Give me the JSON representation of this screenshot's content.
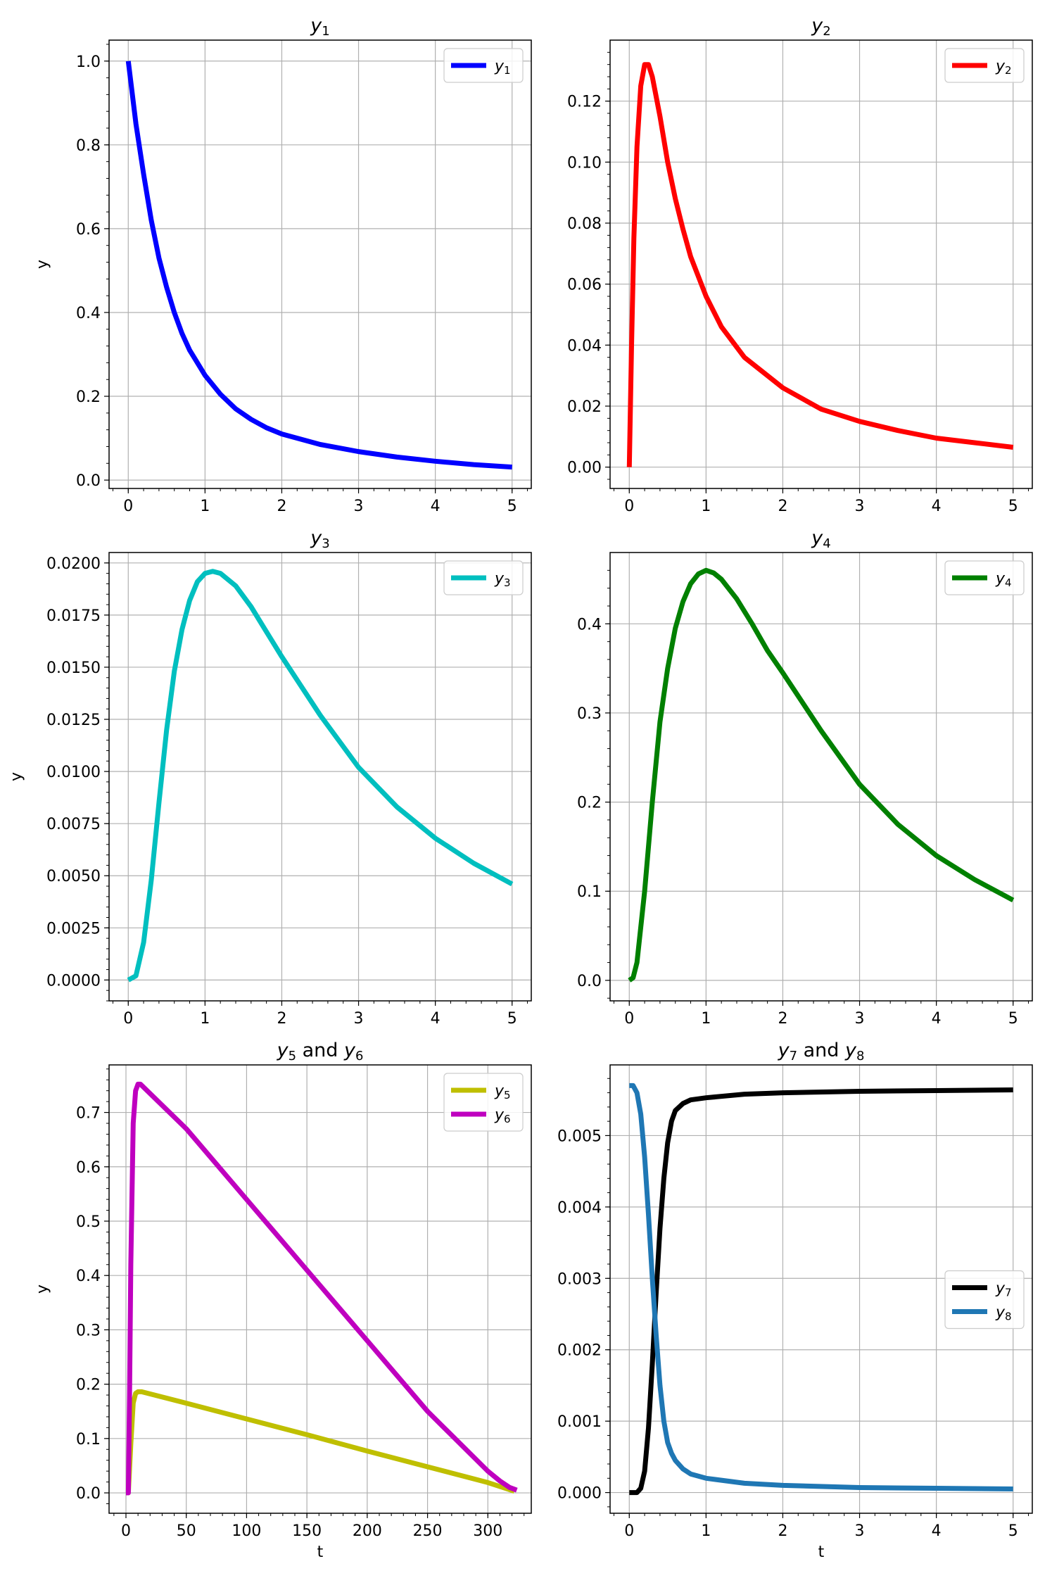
{
  "figure": {
    "title": ""
  },
  "chart_data": [
    {
      "type": "line",
      "title_base": "y",
      "title_sub": "1",
      "xlabel": "",
      "ylabel": "y",
      "xlim": [
        -0.25,
        5.25
      ],
      "ylim": [
        -0.02,
        1.05
      ],
      "xticks": [
        0,
        1,
        2,
        3,
        4,
        5
      ],
      "xtick_labels": [
        "0",
        "1",
        "2",
        "3",
        "4",
        "5"
      ],
      "yticks": [
        0.0,
        0.2,
        0.4,
        0.6,
        0.8,
        1.0
      ],
      "ytick_labels": [
        "0.0",
        "0.2",
        "0.4",
        "0.6",
        "0.8",
        "1.0"
      ],
      "grid": true,
      "legend_loc": "upper-right",
      "series": [
        {
          "label_base": "y",
          "label_sub": "1",
          "color": "#0000ff",
          "x": [
            0,
            0.1,
            0.2,
            0.3,
            0.4,
            0.5,
            0.6,
            0.7,
            0.8,
            0.9,
            1.0,
            1.2,
            1.4,
            1.6,
            1.8,
            2.0,
            2.5,
            3.0,
            3.5,
            4.0,
            4.5,
            5.0
          ],
          "y": [
            1.0,
            0.85,
            0.73,
            0.62,
            0.53,
            0.46,
            0.4,
            0.35,
            0.31,
            0.28,
            0.25,
            0.205,
            0.17,
            0.145,
            0.125,
            0.11,
            0.085,
            0.068,
            0.055,
            0.045,
            0.037,
            0.031
          ]
        }
      ]
    },
    {
      "type": "line",
      "title_base": "y",
      "title_sub": "2",
      "xlabel": "",
      "ylabel": "",
      "xlim": [
        -0.25,
        5.25
      ],
      "ylim": [
        -0.007,
        0.14
      ],
      "xticks": [
        0,
        1,
        2,
        3,
        4,
        5
      ],
      "xtick_labels": [
        "0",
        "1",
        "2",
        "3",
        "4",
        "5"
      ],
      "yticks": [
        0.0,
        0.02,
        0.04,
        0.06,
        0.08,
        0.1,
        0.12
      ],
      "ytick_labels": [
        "0.00",
        "0.02",
        "0.04",
        "0.06",
        "0.08",
        "0.10",
        "0.12"
      ],
      "grid": true,
      "legend_loc": "upper-right",
      "series": [
        {
          "label_base": "y",
          "label_sub": "2",
          "color": "#ff0000",
          "x": [
            0,
            0.03,
            0.06,
            0.1,
            0.15,
            0.2,
            0.25,
            0.3,
            0.4,
            0.5,
            0.6,
            0.7,
            0.8,
            1.0,
            1.2,
            1.5,
            2.0,
            2.5,
            3.0,
            3.5,
            4.0,
            4.5,
            5.0
          ],
          "y": [
            0.0,
            0.04,
            0.075,
            0.105,
            0.125,
            0.132,
            0.132,
            0.128,
            0.115,
            0.1,
            0.088,
            0.078,
            0.069,
            0.056,
            0.046,
            0.036,
            0.026,
            0.019,
            0.015,
            0.012,
            0.0095,
            0.008,
            0.0065
          ]
        }
      ]
    },
    {
      "type": "line",
      "title_base": "y",
      "title_sub": "3",
      "xlabel": "",
      "ylabel": "y",
      "xlim": [
        -0.25,
        5.25
      ],
      "ylim": [
        -0.001,
        0.0205
      ],
      "xticks": [
        0,
        1,
        2,
        3,
        4,
        5
      ],
      "xtick_labels": [
        "0",
        "1",
        "2",
        "3",
        "4",
        "5"
      ],
      "yticks": [
        0,
        0.0025,
        0.005,
        0.0075,
        0.01,
        0.0125,
        0.015,
        0.0175,
        0.02
      ],
      "ytick_labels": [
        "0.0000",
        "0.0025",
        "0.0050",
        "0.0075",
        "0.0100",
        "0.0125",
        "0.0150",
        "0.0175",
        "0.0200"
      ],
      "grid": true,
      "legend_loc": "upper-right",
      "series": [
        {
          "label_base": "y",
          "label_sub": "3",
          "color": "#00bfbf",
          "x": [
            0,
            0.1,
            0.2,
            0.3,
            0.4,
            0.5,
            0.6,
            0.7,
            0.8,
            0.9,
            1.0,
            1.1,
            1.2,
            1.4,
            1.6,
            1.8,
            2.0,
            2.5,
            3.0,
            3.5,
            4.0,
            4.5,
            5.0
          ],
          "y": [
            0.0,
            0.0002,
            0.0018,
            0.0048,
            0.0085,
            0.012,
            0.0148,
            0.0168,
            0.0182,
            0.0191,
            0.0195,
            0.0196,
            0.0195,
            0.0189,
            0.0179,
            0.0167,
            0.0155,
            0.0127,
            0.0102,
            0.0083,
            0.0068,
            0.0056,
            0.0046
          ]
        }
      ]
    },
    {
      "type": "line",
      "title_base": "y",
      "title_sub": "4",
      "xlabel": "",
      "ylabel": "",
      "xlim": [
        -0.25,
        5.25
      ],
      "ylim": [
        -0.023,
        0.48
      ],
      "xticks": [
        0,
        1,
        2,
        3,
        4,
        5
      ],
      "xtick_labels": [
        "0",
        "1",
        "2",
        "3",
        "4",
        "5"
      ],
      "yticks": [
        0.0,
        0.1,
        0.2,
        0.3,
        0.4
      ],
      "ytick_labels": [
        "0.0",
        "0.1",
        "0.2",
        "0.3",
        "0.4"
      ],
      "grid": true,
      "legend_loc": "upper-right",
      "series": [
        {
          "label_base": "y",
          "label_sub": "4",
          "color": "#008000",
          "x": [
            0,
            0.05,
            0.1,
            0.2,
            0.3,
            0.4,
            0.5,
            0.6,
            0.7,
            0.8,
            0.9,
            1.0,
            1.1,
            1.2,
            1.4,
            1.6,
            1.8,
            2.0,
            2.5,
            3.0,
            3.5,
            4.0,
            4.5,
            5.0
          ],
          "y": [
            0.0,
            0.003,
            0.02,
            0.1,
            0.2,
            0.29,
            0.35,
            0.395,
            0.425,
            0.445,
            0.456,
            0.46,
            0.457,
            0.45,
            0.428,
            0.4,
            0.37,
            0.345,
            0.28,
            0.22,
            0.175,
            0.14,
            0.113,
            0.09
          ]
        }
      ]
    },
    {
      "type": "line",
      "title_base": "y",
      "title_sub": "5",
      "title_mid": " and ",
      "title_base2": "y",
      "title_sub2": "6",
      "xlabel": "t",
      "ylabel": "y",
      "xlim": [
        -14,
        336
      ],
      "ylim": [
        -0.0375,
        0.7875
      ],
      "xticks": [
        0,
        50,
        100,
        150,
        200,
        250,
        300
      ],
      "xtick_labels": [
        "0",
        "50",
        "100",
        "150",
        "200",
        "250",
        "300"
      ],
      "yticks": [
        0,
        0.1,
        0.2,
        0.3,
        0.4,
        0.5,
        0.6,
        0.7
      ],
      "ytick_labels": [
        "0.0",
        "0.1",
        "0.2",
        "0.3",
        "0.4",
        "0.5",
        "0.6",
        "0.7"
      ],
      "grid": true,
      "legend_loc": "upper-right",
      "series": [
        {
          "label_base": "y",
          "label_sub": "5",
          "color": "#bfbf00",
          "x": [
            0,
            2,
            4,
            6,
            8,
            10,
            13,
            50,
            100,
            150,
            200,
            250,
            300,
            322
          ],
          "y": [
            0.0,
            0.0,
            0.09,
            0.165,
            0.183,
            0.186,
            0.186,
            0.165,
            0.136,
            0.107,
            0.077,
            0.048,
            0.019,
            0.003
          ]
        },
        {
          "label_base": "y",
          "label_sub": "6",
          "color": "#bf00bf",
          "x": [
            0,
            2,
            3,
            4,
            6,
            8,
            10,
            12,
            50,
            100,
            150,
            200,
            250,
            300,
            310,
            318,
            324
          ],
          "y": [
            0.0,
            0.0,
            0.18,
            0.42,
            0.68,
            0.74,
            0.752,
            0.752,
            0.67,
            0.54,
            0.41,
            0.28,
            0.15,
            0.04,
            0.022,
            0.01,
            0.005
          ]
        }
      ]
    },
    {
      "type": "line",
      "title_base": "y",
      "title_sub": "7",
      "title_mid": " and ",
      "title_base2": "y",
      "title_sub2": "8",
      "xlabel": "t",
      "ylabel": "",
      "xlim": [
        -0.25,
        5.25
      ],
      "ylim": [
        -0.00029,
        0.00599
      ],
      "xticks": [
        0,
        1,
        2,
        3,
        4,
        5
      ],
      "xtick_labels": [
        "0",
        "1",
        "2",
        "3",
        "4",
        "5"
      ],
      "yticks": [
        0,
        0.001,
        0.002,
        0.003,
        0.004,
        0.005
      ],
      "ytick_labels": [
        "0.000",
        "0.001",
        "0.002",
        "0.003",
        "0.004",
        "0.005"
      ],
      "grid": true,
      "legend_loc": "center-right",
      "series": [
        {
          "label_base": "y",
          "label_sub": "7",
          "color": "#000000",
          "x": [
            0,
            0.1,
            0.15,
            0.2,
            0.25,
            0.3,
            0.35,
            0.4,
            0.45,
            0.5,
            0.55,
            0.6,
            0.7,
            0.8,
            1.0,
            1.5,
            2.0,
            3.0,
            4.0,
            5.0
          ],
          "y": [
            0.0,
            0.0,
            6e-05,
            0.0003,
            0.0009,
            0.0018,
            0.0028,
            0.0037,
            0.0044,
            0.0049,
            0.0052,
            0.00535,
            0.00545,
            0.0055,
            0.00553,
            0.00558,
            0.0056,
            0.00562,
            0.00563,
            0.00564
          ]
        },
        {
          "label_base": "y",
          "label_sub": "8",
          "color": "#1f77b4",
          "x": [
            0,
            0.05,
            0.1,
            0.15,
            0.2,
            0.25,
            0.3,
            0.35,
            0.4,
            0.45,
            0.5,
            0.55,
            0.6,
            0.7,
            0.8,
            1.0,
            1.5,
            2.0,
            3.0,
            4.0,
            5.0
          ],
          "y": [
            0.0057,
            0.0057,
            0.0056,
            0.0053,
            0.0047,
            0.0039,
            0.003,
            0.0022,
            0.0015,
            0.001,
            0.0007,
            0.00055,
            0.00045,
            0.00033,
            0.00026,
            0.0002,
            0.00013,
            0.0001,
            7e-05,
            6e-05,
            5e-05
          ]
        }
      ]
    }
  ]
}
